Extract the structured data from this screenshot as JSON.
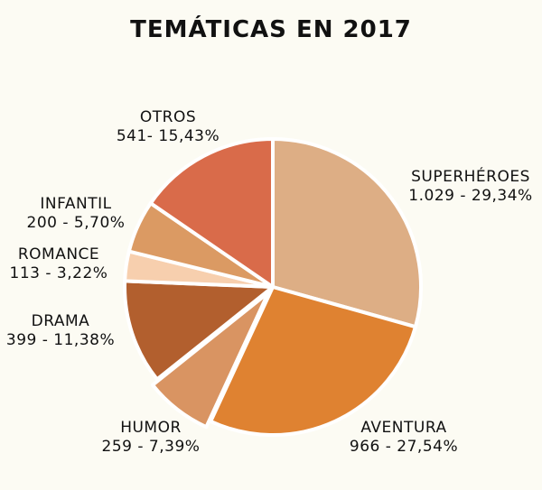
{
  "chart_data": {
    "type": "pie",
    "title": "TEMÁTICAS EN 2017",
    "slices": [
      {
        "name": "SUPERHÉROES",
        "value": 1029,
        "value_label": "1.029 - 29,34%",
        "percent": 29.34,
        "color": "#ddae85"
      },
      {
        "name": "AVENTURA",
        "value": 966,
        "value_label": "966 - 27,54%",
        "percent": 27.54,
        "color": "#df8231"
      },
      {
        "name": "HUMOR",
        "value": 259,
        "value_label": "259 - 7,39%",
        "percent": 7.39,
        "color": "#d99462"
      },
      {
        "name": "DRAMA",
        "value": 399,
        "value_label": "399 - 11,38%",
        "percent": 11.38,
        "color": "#b25f2e"
      },
      {
        "name": "ROMANCE",
        "value": 113,
        "value_label": "113 - 3,22%",
        "percent": 3.22,
        "color": "#f7cfae"
      },
      {
        "name": "INFANTIL",
        "value": 200,
        "value_label": "200 - 5,70%",
        "percent": 5.7,
        "color": "#db9a63"
      },
      {
        "name": "OTROS",
        "value": 541,
        "value_label": "541- 15,43%",
        "percent": 15.43,
        "color": "#d96b4a"
      }
    ]
  }
}
